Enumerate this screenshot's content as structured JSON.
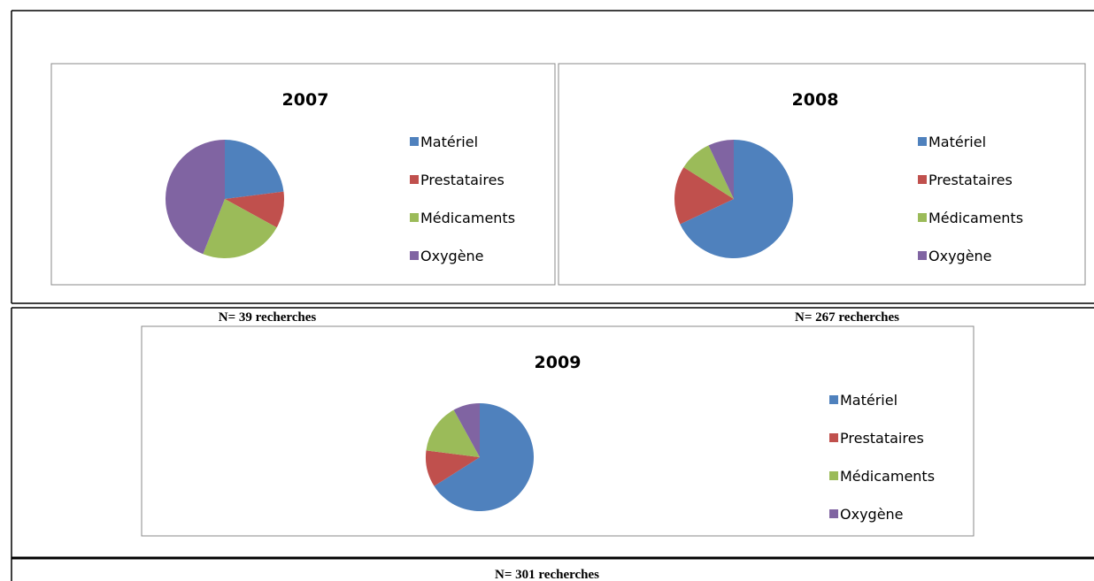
{
  "chart_data": [
    {
      "type": "pie",
      "title": "2007",
      "categories": [
        "Matériel",
        "Prestataires",
        "Médicaments",
        "Oxygène"
      ],
      "values": [
        23,
        10,
        23,
        44
      ],
      "colors": [
        "#4f81bd",
        "#c0504d",
        "#9bbb59",
        "#8064a2"
      ],
      "legend": "right",
      "caption": "N= 39 recherches"
    },
    {
      "type": "pie",
      "title": "2008",
      "categories": [
        "Matériel",
        "Prestataires",
        "Médicaments",
        "Oxygène"
      ],
      "values": [
        68,
        16,
        9,
        7
      ],
      "colors": [
        "#4f81bd",
        "#c0504d",
        "#9bbb59",
        "#8064a2"
      ],
      "legend": "right",
      "caption": "N= 267 recherches"
    },
    {
      "type": "pie",
      "title": "2009",
      "categories": [
        "Matériel",
        "Prestataires",
        "Médicaments",
        "Oxygène"
      ],
      "values": [
        66,
        11,
        15,
        8
      ],
      "colors": [
        "#4f81bd",
        "#c0504d",
        "#9bbb59",
        "#8064a2"
      ],
      "legend": "right",
      "caption": "N= 301 recherches"
    }
  ]
}
